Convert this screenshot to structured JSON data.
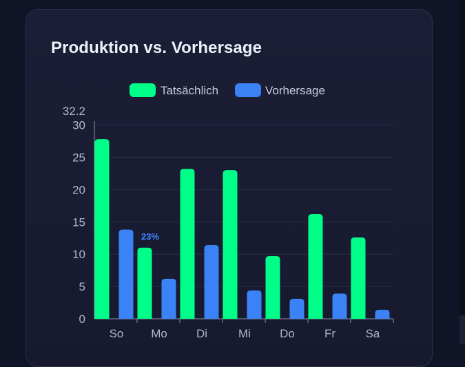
{
  "card": {
    "title": "Produktion vs. Vorhersage"
  },
  "chart_data": {
    "type": "bar",
    "title": "Produktion vs. Vorhersage",
    "categories": [
      "So",
      "Mo",
      "Di",
      "Mi",
      "Do",
      "Fr",
      "Sa"
    ],
    "series": [
      {
        "name": "Tatsächlich",
        "color": "#00ff88",
        "values": [
          27.8,
          11.0,
          23.2,
          23.0,
          9.7,
          16.2,
          12.6
        ]
      },
      {
        "name": "Vorhersage",
        "color": "#3b82f6",
        "values": [
          13.8,
          6.2,
          11.4,
          4.4,
          3.1,
          3.9,
          1.4
        ]
      }
    ],
    "ylim": [
      0,
      32.2
    ],
    "y_max_label": "32.2",
    "yticks": [
      0,
      5,
      10,
      15,
      20,
      25,
      30
    ],
    "annotations": [
      {
        "category": "Mo",
        "text": "23%"
      }
    ],
    "legend_position": "top-center",
    "grid": true
  }
}
